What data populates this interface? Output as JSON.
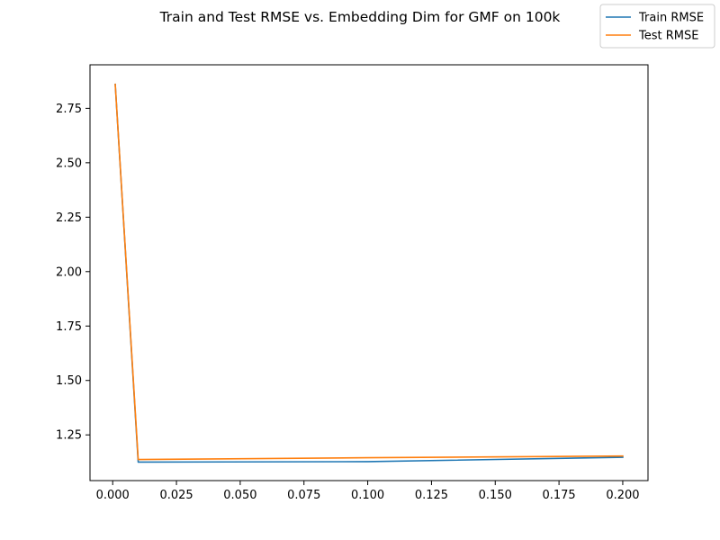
{
  "chart_data": {
    "type": "line",
    "title": "Train and Test RMSE vs. Embedding Dim for GMF on 100k",
    "xlabel": "",
    "ylabel": "",
    "xlim": [
      -0.0089,
      0.2099
    ],
    "ylim": [
      1.04,
      2.95
    ],
    "x_ticks": [
      0.0,
      0.025,
      0.05,
      0.075,
      0.1,
      0.125,
      0.15,
      0.175,
      0.2
    ],
    "x_tick_labels": [
      "0.000",
      "0.025",
      "0.050",
      "0.075",
      "0.100",
      "0.125",
      "0.150",
      "0.175",
      "0.200"
    ],
    "y_ticks": [
      1.25,
      1.5,
      1.75,
      2.0,
      2.25,
      2.5,
      2.75
    ],
    "y_tick_labels": [
      "1.25",
      "1.50",
      "1.75",
      "2.00",
      "2.25",
      "2.50",
      "2.75"
    ],
    "grid": false,
    "legend_position": "top-right",
    "series": [
      {
        "name": "Train RMSE",
        "color": "#1f77b4",
        "x": [
          0.001,
          0.01,
          0.1,
          0.2
        ],
        "y": [
          2.86,
          1.125,
          1.127,
          1.147
        ]
      },
      {
        "name": "Test RMSE",
        "color": "#ff7f0e",
        "x": [
          0.001,
          0.01,
          0.1,
          0.2
        ],
        "y": [
          2.86,
          1.137,
          1.145,
          1.153
        ]
      }
    ]
  }
}
